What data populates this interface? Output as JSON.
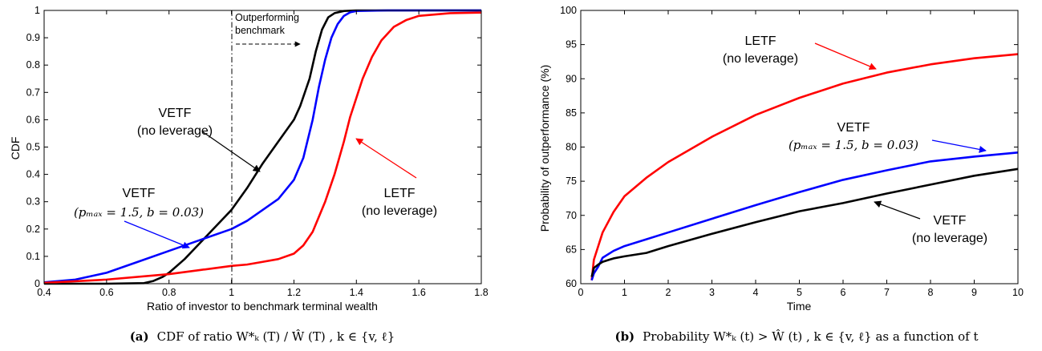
{
  "colors": {
    "black": "#000000",
    "blue": "#0000ff",
    "red": "#ff0000"
  },
  "chart_data": [
    {
      "type": "line",
      "xlabel": "Ratio of investor to benchmark terminal wealth",
      "ylabel": "CDF",
      "xlim": [
        0.4,
        1.8
      ],
      "ylim": [
        0,
        1
      ],
      "x_ticks": [
        "0.4",
        "0.6",
        "0.8",
        "1",
        "1.2",
        "1.4",
        "1.6",
        "1.8"
      ],
      "y_ticks": [
        "0",
        "0.1",
        "0.2",
        "0.3",
        "0.4",
        "0.5",
        "0.6",
        "0.7",
        "0.8",
        "0.9",
        "1"
      ],
      "grid": false,
      "caption_label": "(a)",
      "caption_text": "CDF of ratio W*ₖ (T) / Ŵ (T) , k ∈ {v, ℓ}",
      "series": [
        {
          "color": "#000000",
          "x": [
            0.4,
            0.6,
            0.72,
            0.75,
            0.78,
            0.8,
            0.85,
            0.9,
            0.95,
            1.0,
            1.05,
            1.1,
            1.15,
            1.2,
            1.22,
            1.25,
            1.27,
            1.29,
            1.31,
            1.33,
            1.36,
            1.4,
            1.5,
            1.8
          ],
          "y": [
            0,
            0,
            0.002,
            0.01,
            0.025,
            0.04,
            0.09,
            0.15,
            0.21,
            0.27,
            0.35,
            0.44,
            0.52,
            0.6,
            0.65,
            0.75,
            0.85,
            0.93,
            0.975,
            0.99,
            0.998,
            1.0,
            1.0,
            1.0
          ]
        },
        {
          "color": "#0000ff",
          "x": [
            0.4,
            0.5,
            0.6,
            0.7,
            0.8,
            0.9,
            1.0,
            1.05,
            1.1,
            1.15,
            1.2,
            1.23,
            1.26,
            1.28,
            1.3,
            1.32,
            1.34,
            1.36,
            1.38,
            1.4,
            1.5,
            1.8
          ],
          "y": [
            0.005,
            0.015,
            0.04,
            0.08,
            0.12,
            0.16,
            0.2,
            0.23,
            0.27,
            0.31,
            0.38,
            0.46,
            0.6,
            0.72,
            0.82,
            0.9,
            0.95,
            0.98,
            0.993,
            0.998,
            1.0,
            1.0
          ]
        },
        {
          "color": "#ff0000",
          "x": [
            0.4,
            0.6,
            0.8,
            0.9,
            1.0,
            1.05,
            1.1,
            1.15,
            1.2,
            1.23,
            1.26,
            1.3,
            1.33,
            1.36,
            1.38,
            1.4,
            1.42,
            1.45,
            1.48,
            1.52,
            1.56,
            1.6,
            1.7,
            1.8
          ],
          "y": [
            0.003,
            0.015,
            0.035,
            0.05,
            0.065,
            0.07,
            0.08,
            0.09,
            0.11,
            0.14,
            0.19,
            0.3,
            0.4,
            0.52,
            0.61,
            0.68,
            0.75,
            0.83,
            0.89,
            0.94,
            0.965,
            0.98,
            0.99,
            0.992
          ]
        }
      ],
      "annotations": {
        "vetf_nolev_title": "VETF",
        "vetf_nolev_sub": "(no leverage)",
        "vetf_lev_title": "VETF",
        "vetf_lev_sub": "(pₘₐₓ = 1.5, b = 0.03)",
        "letf_title": "LETF",
        "letf_sub": "(no leverage)",
        "outperf_line1": "Outperforming",
        "outperf_line2": "benchmark"
      }
    },
    {
      "type": "line",
      "xlabel": "Time",
      "ylabel": "Probability of outperformance (%)",
      "xlim": [
        0,
        10
      ],
      "ylim": [
        60,
        100
      ],
      "x_ticks": [
        "0",
        "1",
        "2",
        "3",
        "4",
        "5",
        "6",
        "7",
        "8",
        "9",
        "10"
      ],
      "y_ticks": [
        "60",
        "65",
        "70",
        "75",
        "80",
        "85",
        "90",
        "95",
        "100"
      ],
      "grid": false,
      "caption_label": "(b)",
      "caption_text": "Probability W*ₖ (t) > Ŵ (t) , k ∈ {v, ℓ} as a function of t",
      "series": [
        {
          "color": "#ff0000",
          "x": [
            0.25,
            0.3,
            0.4,
            0.5,
            0.75,
            1,
            1.5,
            2,
            3,
            4,
            5,
            6,
            7,
            8,
            9,
            10
          ],
          "y": [
            60.5,
            63.5,
            65.5,
            67.5,
            70.5,
            72.8,
            75.5,
            77.8,
            81.5,
            84.7,
            87.2,
            89.3,
            90.9,
            92.1,
            93.0,
            93.6
          ]
        },
        {
          "color": "#0000ff",
          "x": [
            0.25,
            0.3,
            0.4,
            0.5,
            0.75,
            1,
            1.5,
            2,
            3,
            4,
            5,
            6,
            7,
            8,
            9,
            10
          ],
          "y": [
            60.5,
            61.5,
            62.5,
            63.8,
            64.8,
            65.5,
            66.5,
            67.5,
            69.5,
            71.5,
            73.4,
            75.2,
            76.6,
            77.9,
            78.6,
            79.2
          ]
        },
        {
          "color": "#000000",
          "x": [
            0.25,
            0.3,
            0.4,
            0.5,
            0.75,
            1,
            1.5,
            2,
            3,
            4,
            5,
            6,
            7,
            8,
            9,
            10
          ],
          "y": [
            61,
            62.3,
            62.8,
            63.2,
            63.7,
            64.0,
            64.5,
            65.5,
            67.3,
            69.0,
            70.6,
            71.8,
            73.2,
            74.5,
            75.8,
            76.8
          ]
        }
      ],
      "annotations": {
        "letf_title": "LETF",
        "letf_sub": "(no leverage)",
        "vetf_lev_title": "VETF",
        "vetf_lev_sub": "(pₘₐₓ = 1.5, b = 0.03)",
        "vetf_nolev_title": "VETF",
        "vetf_nolev_sub": "(no leverage)"
      }
    }
  ]
}
